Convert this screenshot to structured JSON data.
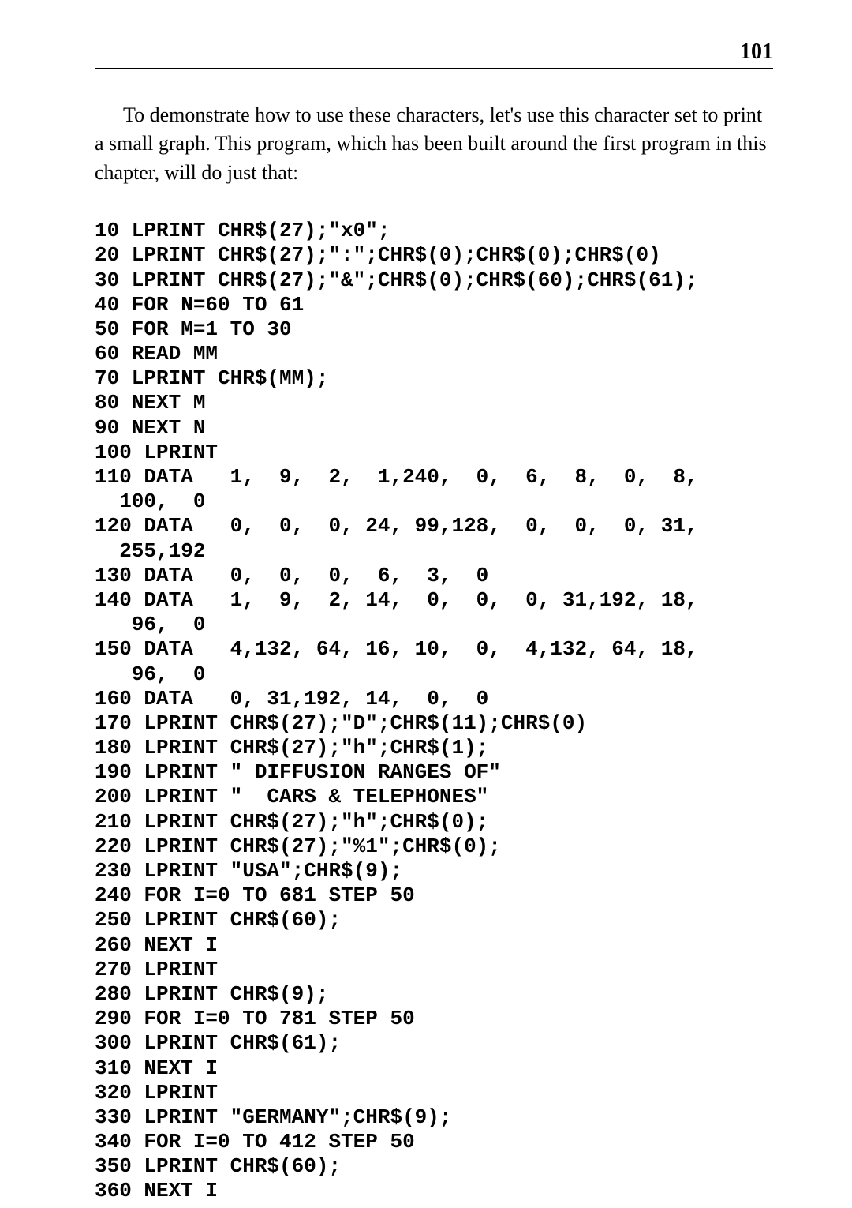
{
  "page": {
    "number": "101",
    "intro": "To demonstrate how to use these characters, let's use this character set to print a small graph. This program, which has been built around the first program in this chapter, will do just that:"
  },
  "code": {
    "lines": [
      "10 LPRINT CHR$(27);\"x0\";",
      "20 LPRINT CHR$(27);\":\";CHR$(0);CHR$(0);CHR$(0)",
      "30 LPRINT CHR$(27);\"&\";CHR$(0);CHR$(60);CHR$(61);",
      "40 FOR N=60 TO 61",
      "50 FOR M=1 TO 30",
      "60 READ MM",
      "70 LPRINT CHR$(MM);",
      "80 NEXT M",
      "90 NEXT N",
      "100 LPRINT",
      "110 DATA   1,  9,  2,  1,240,  0,  6,  8,  0,  8,",
      "  100,  0",
      "120 DATA   0,  0,  0, 24, 99,128,  0,  0,  0, 31,",
      "  255,192",
      "130 DATA   0,  0,  0,  6,  3,  0",
      "140 DATA   1,  9,  2, 14,  0,  0,  0, 31,192, 18,",
      "   96,  0",
      "150 DATA   4,132, 64, 16, 10,  0,  4,132, 64, 18,",
      "   96,  0",
      "160 DATA   0, 31,192, 14,  0,  0",
      "170 LPRINT CHR$(27);\"D\";CHR$(11);CHR$(0)",
      "180 LPRINT CHR$(27);\"h\";CHR$(1);",
      "190 LPRINT \" DIFFUSION RANGES OF\"",
      "200 LPRINT \"  CARS & TELEPHONES\"",
      "210 LPRINT CHR$(27);\"h\";CHR$(0);",
      "220 LPRINT CHR$(27);\"%1\";CHR$(0);",
      "230 LPRINT \"USA\";CHR$(9);",
      "240 FOR I=0 TO 681 STEP 50",
      "250 LPRINT CHR$(60);",
      "260 NEXT I",
      "270 LPRINT",
      "280 LPRINT CHR$(9);",
      "290 FOR I=0 TO 781 STEP 50",
      "300 LPRINT CHR$(61);",
      "310 NEXT I",
      "320 LPRINT",
      "330 LPRINT \"GERMANY\";CHR$(9);",
      "340 FOR I=0 TO 412 STEP 50",
      "350 LPRINT CHR$(60);",
      "360 NEXT I"
    ]
  },
  "styling": {
    "background_color": "#ffffff",
    "text_color": "#000000",
    "intro_font_family": "Times New Roman",
    "intro_font_size": 26,
    "code_font_family": "Courier New",
    "code_font_size": 26,
    "code_font_weight": "bold",
    "page_number_font_size": 28,
    "border_width": 2
  }
}
